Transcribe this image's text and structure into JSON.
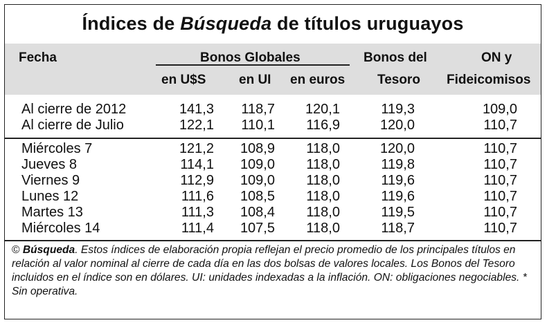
{
  "title": {
    "prefix": "Índices de",
    "emph": "Búsqueda",
    "suffix": "de títulos uruguayos"
  },
  "header": {
    "fecha": "Fecha",
    "bonos_globales": "Bonos Globales",
    "en_usd": "en U$S",
    "en_ui": "en UI",
    "en_euros": "en euros",
    "tesoro_1": "Bonos del",
    "tesoro_2": "Tesoro",
    "on_1": "ON y",
    "on_2": "Fideicomisos"
  },
  "rows_top": [
    {
      "label": "Al cierre de 2012",
      "usd": "141,3",
      "ui": "118,7",
      "euros": "120,1",
      "tesoro": "119,3",
      "on": "109,0"
    },
    {
      "label": "Al cierre de Julio",
      "usd": "122,1",
      "ui": "110,1",
      "euros": "116,9",
      "tesoro": "120,0",
      "on": "110,7"
    }
  ],
  "rows_days": [
    {
      "label": "Miércoles 7",
      "usd": "121,2",
      "ui": "108,9",
      "euros": "118,0",
      "tesoro": "120,0",
      "on": "110,7"
    },
    {
      "label": "Jueves 8",
      "usd": "114,1",
      "ui": "109,0",
      "euros": "118,0",
      "tesoro": "119,8",
      "on": "110,7"
    },
    {
      "label": "Viernes 9",
      "usd": "112,9",
      "ui": "109,0",
      "euros": "118,0",
      "tesoro": "119,6",
      "on": "110,7"
    },
    {
      "label": "Lunes 12",
      "usd": "111,6",
      "ui": "108,5",
      "euros": "118,0",
      "tesoro": "119,6",
      "on": "110,7"
    },
    {
      "label": "Martes 13",
      "usd": "111,3",
      "ui": "108,4",
      "euros": "118,0",
      "tesoro": "119,5",
      "on": "110,7"
    },
    {
      "label": "Miércoles 14",
      "usd": "111,4",
      "ui": "107,5",
      "euros": "118,0",
      "tesoro": "118,7",
      "on": "110,7"
    }
  ],
  "note": {
    "copy": "©",
    "source": "Búsqueda",
    "text": ". Estos índices de elaboración propia reflejan el precio promedio de los principales títulos en relación al valor nominal al cierre de cada día en las dos bolsas de valores locales. Los Bonos del Tesoro incluidos en el índice son en dólares. UI: unidades indexadas a la inflación. ON: obligaciones negociables. * Sin operativa."
  }
}
